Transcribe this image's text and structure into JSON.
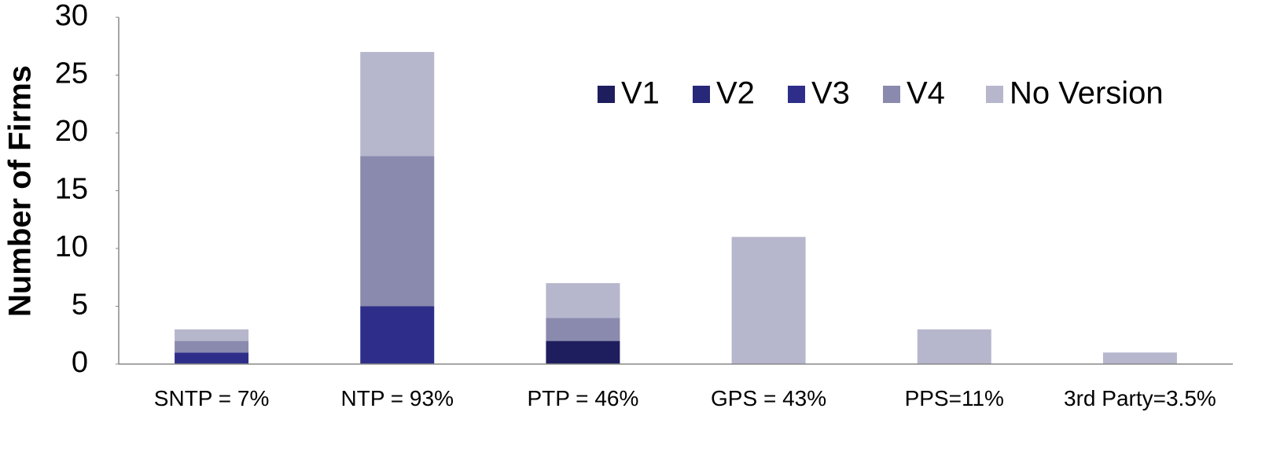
{
  "chart_data": {
    "type": "stacked_bar",
    "y_label": "Number of Firms",
    "categories": [
      "SNTP = 7%",
      "NTP = 93%",
      "PTP = 46%",
      "GPS = 43%",
      "PPS=11%",
      "3rd Party=3.5%"
    ],
    "series": [
      {
        "name": "V1",
        "color": "#1e1e5f",
        "values": [
          0,
          0,
          2,
          0,
          0,
          0
        ]
      },
      {
        "name": "V2",
        "color": "#28287a",
        "values": [
          0,
          0,
          0,
          0,
          0,
          0
        ]
      },
      {
        "name": "V3",
        "color": "#2e2e8a",
        "values": [
          1,
          5,
          0,
          0,
          0,
          0
        ]
      },
      {
        "name": "V4",
        "color": "#8a8aae",
        "values": [
          1,
          13,
          2,
          0,
          0,
          0
        ]
      },
      {
        "name": "No Version",
        "color": "#b6b6cc",
        "values": [
          1,
          9,
          3,
          11,
          3,
          1
        ]
      }
    ],
    "ylim": [
      0,
      30
    ],
    "yticks": [
      0,
      5,
      10,
      15,
      20,
      25,
      30
    ],
    "legend": "top-right"
  }
}
